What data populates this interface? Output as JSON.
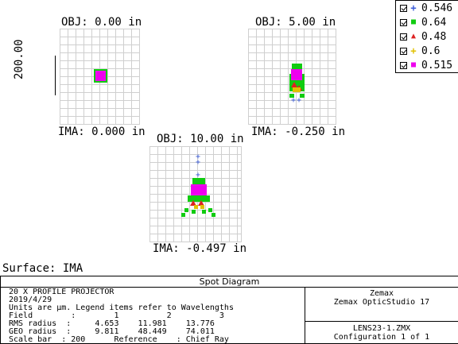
{
  "spot_plots": [
    {
      "obj_label": "OBJ: 0.00 in",
      "ima_label": "IMA: 0.000 in",
      "scale_label": "200.00"
    },
    {
      "obj_label": "OBJ: 5.00 in",
      "ima_label": "IMA: -0.250 in"
    },
    {
      "obj_label": "OBJ: 10.00 in",
      "ima_label": "IMA: -0.497 in"
    }
  ],
  "legend": {
    "items": [
      {
        "label": "0.546",
        "color": "#3a5bd9",
        "marker": "+",
        "checked": true
      },
      {
        "label": "0.64",
        "color": "#11cc11",
        "marker": "■",
        "checked": true
      },
      {
        "label": "0.48",
        "color": "#dd2222",
        "marker": "▲",
        "checked": true
      },
      {
        "label": "0.6",
        "color": "#e0c000",
        "marker": "+",
        "checked": true
      },
      {
        "label": "0.515",
        "color": "#ee00ee",
        "marker": "■",
        "checked": true
      }
    ]
  },
  "surface_label": "Surface: IMA",
  "panel": {
    "title": "Spot Diagram",
    "lines": [
      "20 X PROFILE PROJECTOR",
      "2019/4/29",
      "Units are µm. Legend items refer to Wavelengths",
      "Field        :        1          2          3",
      "RMS radius  :     4.653    11.981    13.776",
      "GEO radius  :     9.811    48.449    74.011",
      "Scale bar  : 200      Reference    : Chief Ray"
    ],
    "company": "Zemax",
    "product": "Zemax OpticStudio 17",
    "file": "LENS23-1.ZMX",
    "config": "Configuration 1 of 1"
  }
}
